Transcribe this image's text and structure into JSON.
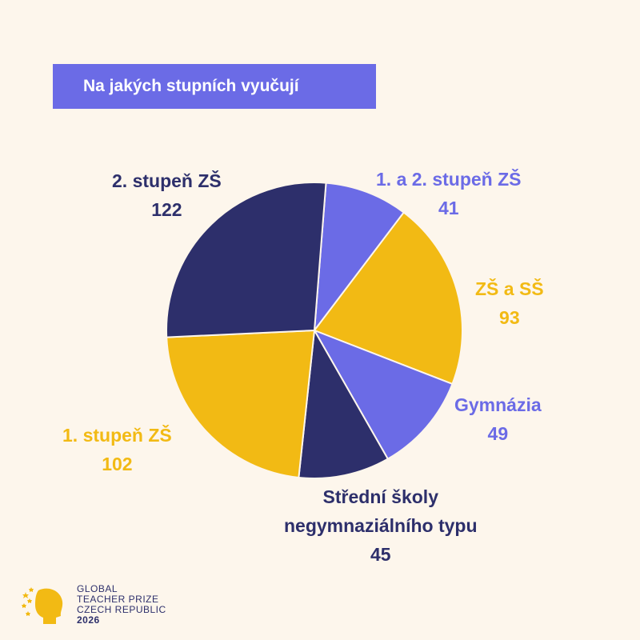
{
  "title": "Na jakých stupních vyučují",
  "colors": {
    "background": "#FDF6EC",
    "navy": "#2D2F6B",
    "yellow": "#F2BA14",
    "purple": "#6B6BE6"
  },
  "chart_data": {
    "type": "pie",
    "title": "Na jakých stupních vyučují",
    "slices": [
      {
        "label": "1. a 2. stupeň ZŠ",
        "value": 41,
        "color": "#6B6BE6"
      },
      {
        "label": "ZŠ a SŠ",
        "value": 93,
        "color": "#F2BA14"
      },
      {
        "label": "Gymnázia",
        "value": 49,
        "color": "#6B6BE6"
      },
      {
        "label": "Střední školy negymnaziálního typu",
        "value": 45,
        "color": "#2D2F6B"
      },
      {
        "label": "1. stupeň ZŠ",
        "value": 102,
        "color": "#F2BA14"
      },
      {
        "label": "2. stupeň ZŠ",
        "value": 122,
        "color": "#2D2F6B"
      }
    ]
  },
  "labels": {
    "s1": {
      "name": "1. a 2. stupeň ZŠ",
      "value": "41"
    },
    "s2": {
      "name": "ZŠ a SŠ",
      "value": "93"
    },
    "s3": {
      "name": "Gymnázia",
      "value": "49"
    },
    "s4": {
      "line1": "Střední školy",
      "line2": "negymnaziálního typu",
      "value": "45"
    },
    "s5": {
      "name": "1. stupeň ZŠ",
      "value": "102"
    },
    "s6": {
      "name": "2. stupeň ZŠ",
      "value": "122"
    }
  },
  "logo": {
    "icon": "head-stars-icon",
    "line1": "GLOBAL",
    "line2": "TEACHER PRIZE",
    "line3": "CZECH REPUBLIC",
    "line4": "2026"
  }
}
